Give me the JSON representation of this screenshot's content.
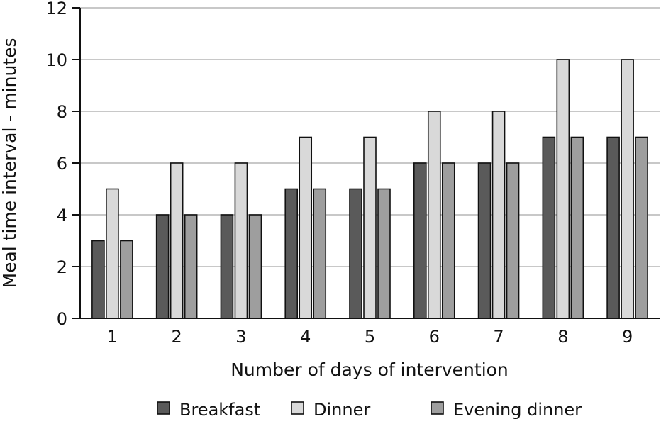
{
  "chart_data": {
    "type": "bar",
    "title": "",
    "xlabel": "Number of days of intervention",
    "ylabel": "Meal time interval - minutes",
    "ylim": [
      0,
      12
    ],
    "yticks": [
      "0",
      "2",
      "4",
      "6",
      "8",
      "10",
      "12"
    ],
    "grid": true,
    "legend_placement": "bottom",
    "categories": [
      "1",
      "2",
      "3",
      "4",
      "5",
      "6",
      "7",
      "8",
      "9"
    ],
    "series": [
      {
        "name": "Breakfast",
        "color": "#5a5a5a",
        "values": [
          3,
          4,
          4,
          5,
          5,
          6,
          6,
          7,
          7
        ]
      },
      {
        "name": "Dinner",
        "color": "#d9d9d9",
        "values": [
          5,
          6,
          6,
          7,
          7,
          8,
          8,
          10,
          10
        ]
      },
      {
        "name": "Evening dinner",
        "color": "#9e9e9e",
        "values": [
          3,
          4,
          4,
          5,
          5,
          6,
          6,
          7,
          7
        ]
      }
    ]
  }
}
